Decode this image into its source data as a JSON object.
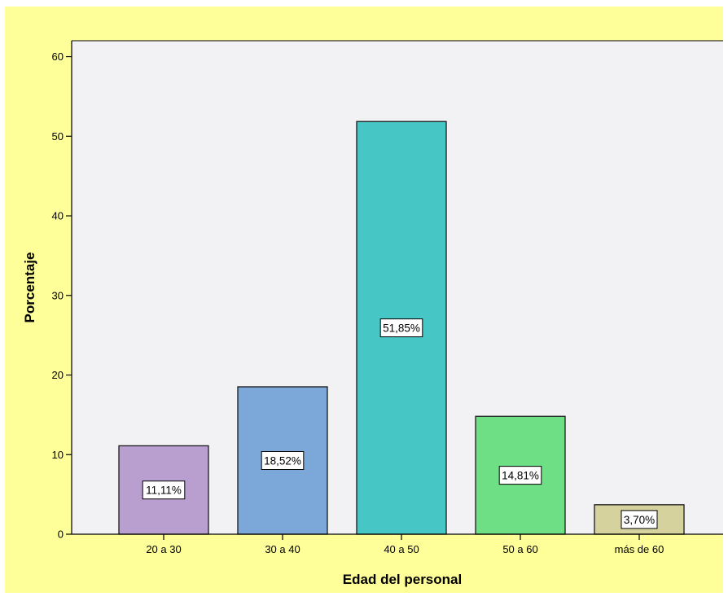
{
  "colors": {
    "frame_background": "#ffff99",
    "plot_background": "#f2f2f5",
    "bar_stroke": "#1a1a1a",
    "bars": [
      "#b89fd0",
      "#7ba8d9",
      "#47c6c6",
      "#6edf85",
      "#d5d29d"
    ]
  },
  "chart_data": {
    "type": "bar",
    "categories": [
      "20 a 30",
      "30 a 40",
      "40 a 50",
      "50 a 60",
      "más de 60"
    ],
    "values": [
      11.11,
      18.52,
      51.85,
      14.81,
      3.7
    ],
    "data_labels": [
      "11,11%",
      "18,52%",
      "51,85%",
      "14,81%",
      "3,70%"
    ],
    "xlabel": "Edad del personal",
    "ylabel": "Porcentaje",
    "ylim": [
      0,
      62
    ],
    "yticks": [
      0,
      10,
      20,
      30,
      40,
      50,
      60
    ],
    "grid": false,
    "legend": "none"
  }
}
